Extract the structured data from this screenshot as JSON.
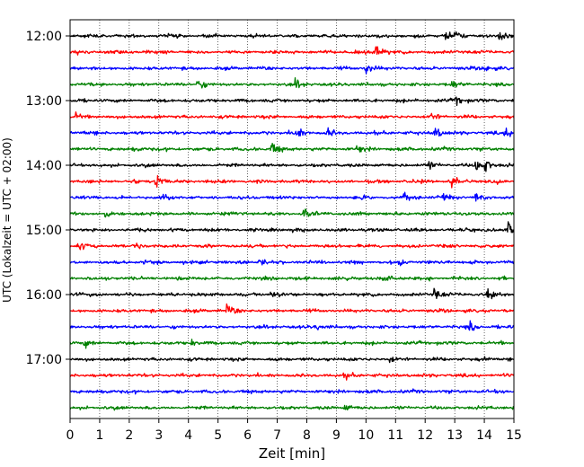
{
  "chart_data": {
    "type": "line",
    "xlabel": "Zeit  [min]",
    "ylabel": "UTC (Lokalzeit = UTC + 02:00)",
    "xlim": [
      0,
      15
    ],
    "x_ticks": [
      0,
      1,
      2,
      3,
      4,
      5,
      6,
      7,
      8,
      9,
      10,
      11,
      12,
      13,
      14,
      15
    ],
    "grid_x": true,
    "grid_x_style": "dotted",
    "y_tick_labels": [
      "12:00",
      "13:00",
      "14:00",
      "15:00",
      "16:00",
      "17:00"
    ],
    "rows_per_label": 4,
    "trace_minutes": 15,
    "trace_colors": [
      "#000000",
      "#ff0000",
      "#0000ff",
      "#008000"
    ],
    "traces": [
      {
        "start": "12:00",
        "events": [
          [
            12.7,
            0.9
          ],
          [
            13.0,
            0.6
          ],
          [
            14.5,
            0.6
          ]
        ]
      },
      {
        "start": "12:15",
        "events": [
          [
            10.3,
            1.2
          ]
        ]
      },
      {
        "start": "12:30",
        "events": [
          [
            10.0,
            0.9
          ],
          [
            14.0,
            0.5
          ]
        ]
      },
      {
        "start": "12:45",
        "events": [
          [
            4.3,
            0.8
          ],
          [
            7.6,
            0.7
          ],
          [
            12.9,
            0.7
          ]
        ]
      },
      {
        "start": "13:00",
        "events": [
          [
            13.0,
            0.8
          ]
        ]
      },
      {
        "start": "13:15",
        "events": [
          [
            0.2,
            0.8
          ],
          [
            12.2,
            0.7
          ]
        ]
      },
      {
        "start": "13:30",
        "events": [
          [
            7.6,
            1.3
          ],
          [
            8.7,
            0.7
          ],
          [
            12.3,
            1.0
          ],
          [
            14.7,
            0.8
          ]
        ]
      },
      {
        "start": "13:45",
        "events": [
          [
            2.1,
            0.7
          ],
          [
            6.8,
            1.1
          ],
          [
            9.7,
            0.6
          ]
        ]
      },
      {
        "start": "14:00",
        "events": [
          [
            12.1,
            0.6
          ],
          [
            13.7,
            1.2
          ],
          [
            14.0,
            1.0
          ]
        ]
      },
      {
        "start": "14:15",
        "events": [
          [
            2.9,
            1.2
          ],
          [
            12.9,
            0.9
          ]
        ]
      },
      {
        "start": "14:30",
        "events": [
          [
            3.1,
            0.5
          ],
          [
            11.3,
            0.7
          ],
          [
            12.6,
            0.6
          ],
          [
            13.7,
            0.8
          ]
        ]
      },
      {
        "start": "14:45",
        "events": [
          [
            1.2,
            0.5
          ],
          [
            7.9,
            0.9
          ]
        ]
      },
      {
        "start": "15:00",
        "events": [
          [
            14.8,
            1.0
          ]
        ]
      },
      {
        "start": "15:15",
        "events": [
          [
            0.3,
            0.6
          ],
          [
            2.2,
            0.6
          ]
        ]
      },
      {
        "start": "15:30",
        "events": [
          [
            6.4,
            0.5
          ],
          [
            11.1,
            0.6
          ]
        ]
      },
      {
        "start": "15:45",
        "events": [
          [
            10.6,
            0.4
          ]
        ]
      },
      {
        "start": "16:00",
        "events": [
          [
            6.8,
            0.6
          ],
          [
            12.3,
            0.9
          ],
          [
            14.1,
            0.8
          ]
        ]
      },
      {
        "start": "16:15",
        "events": [
          [
            5.3,
            1.0
          ]
        ]
      },
      {
        "start": "16:30",
        "events": [
          [
            8.3,
            0.4
          ],
          [
            13.5,
            0.7
          ]
        ]
      },
      {
        "start": "16:45",
        "events": [
          [
            0.5,
            0.6
          ],
          [
            4.1,
            0.4
          ]
        ]
      },
      {
        "start": "17:00",
        "events": [
          [
            10.8,
            0.6
          ]
        ]
      },
      {
        "start": "17:15",
        "events": [
          [
            9.3,
            0.4
          ]
        ]
      },
      {
        "start": "17:30",
        "events": [
          [
            1.0,
            0.6
          ]
        ]
      },
      {
        "start": "17:45",
        "events": [
          [
            9.3,
            0.5
          ]
        ]
      }
    ]
  }
}
